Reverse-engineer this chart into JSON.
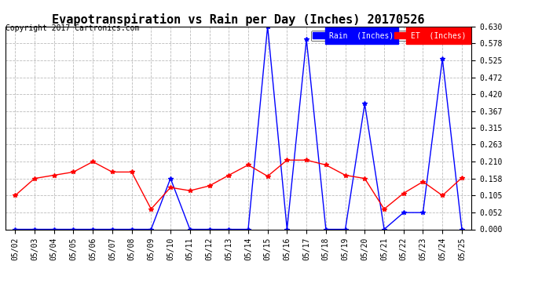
{
  "title": "Evapotranspiration vs Rain per Day (Inches) 20170526",
  "copyright": "Copyright 2017 Cartronics.com",
  "dates": [
    "05/02",
    "05/03",
    "05/04",
    "05/05",
    "05/06",
    "05/07",
    "05/08",
    "05/09",
    "05/10",
    "05/11",
    "05/12",
    "05/13",
    "05/14",
    "05/15",
    "05/16",
    "05/17",
    "05/18",
    "05/19",
    "05/20",
    "05/21",
    "05/22",
    "05/23",
    "05/24",
    "05/25"
  ],
  "rain": [
    0.0,
    0.0,
    0.0,
    0.0,
    0.0,
    0.0,
    0.0,
    0.0,
    0.158,
    0.0,
    0.0,
    0.0,
    0.0,
    0.63,
    0.0,
    0.59,
    0.0,
    0.0,
    0.39,
    0.0,
    0.052,
    0.052,
    0.53,
    0.0
  ],
  "et": [
    0.105,
    0.158,
    0.168,
    0.178,
    0.21,
    0.178,
    0.178,
    0.063,
    0.13,
    0.12,
    0.135,
    0.168,
    0.2,
    0.165,
    0.215,
    0.215,
    0.2,
    0.168,
    0.158,
    0.063,
    0.112,
    0.148,
    0.105,
    0.16
  ],
  "rain_color": "#0000ff",
  "et_color": "#ff0000",
  "background_color": "#ffffff",
  "grid_color": "#bbbbbb",
  "ylim": [
    0.0,
    0.63
  ],
  "yticks": [
    0.0,
    0.052,
    0.105,
    0.158,
    0.21,
    0.263,
    0.315,
    0.367,
    0.42,
    0.472,
    0.525,
    0.578,
    0.63
  ],
  "title_fontsize": 11,
  "copyright_fontsize": 7,
  "legend_rain_label": "Rain  (Inches)",
  "legend_et_label": "ET  (Inches)"
}
